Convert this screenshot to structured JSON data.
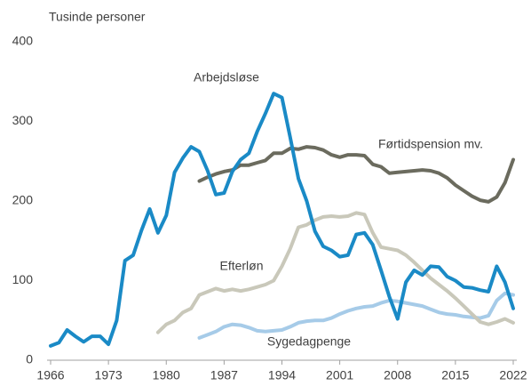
{
  "chart_data": {
    "type": "line",
    "y_axis_label": "Tusinde personer",
    "x": [
      1966,
      1967,
      1968,
      1969,
      1970,
      1971,
      1972,
      1973,
      1974,
      1975,
      1976,
      1977,
      1978,
      1979,
      1980,
      1981,
      1982,
      1983,
      1984,
      1985,
      1986,
      1987,
      1988,
      1989,
      1990,
      1991,
      1992,
      1993,
      1994,
      1995,
      1996,
      1997,
      1998,
      1999,
      2000,
      2001,
      2002,
      2003,
      2004,
      2005,
      2006,
      2007,
      2008,
      2009,
      2010,
      2011,
      2012,
      2013,
      2014,
      2015,
      2016,
      2017,
      2018,
      2019,
      2020,
      2021,
      2022
    ],
    "series": [
      {
        "name": "Arbejdsløse",
        "color": "#1a8ac6",
        "values": [
          18,
          22,
          38,
          30,
          23,
          30,
          30,
          20,
          50,
          125,
          132,
          163,
          190,
          160,
          182,
          236,
          254,
          268,
          262,
          238,
          208,
          210,
          237,
          252,
          260,
          287,
          310,
          335,
          330,
          280,
          228,
          200,
          162,
          143,
          138,
          130,
          132,
          158,
          160,
          145,
          113,
          80,
          52,
          98,
          113,
          107,
          118,
          117,
          105,
          100,
          92,
          91,
          88,
          86,
          118,
          98,
          65
        ]
      },
      {
        "name": "Førtidspension mv.",
        "color": "#6b6b5e",
        "values": [
          null,
          null,
          null,
          null,
          null,
          null,
          null,
          null,
          null,
          null,
          null,
          null,
          null,
          null,
          null,
          null,
          null,
          null,
          225,
          230,
          234,
          237,
          239,
          245,
          245,
          248,
          251,
          260,
          260,
          266,
          265,
          268,
          267,
          264,
          258,
          255,
          258,
          258,
          257,
          246,
          243,
          235,
          236,
          237,
          238,
          239,
          238,
          235,
          229,
          220,
          213,
          206,
          201,
          199,
          205,
          223,
          252
        ]
      },
      {
        "name": "Efterløn",
        "color": "#c9c8ba",
        "values": [
          null,
          null,
          null,
          null,
          null,
          null,
          null,
          null,
          null,
          null,
          null,
          null,
          null,
          35,
          45,
          50,
          60,
          65,
          82,
          86,
          90,
          87,
          89,
          87,
          89,
          92,
          95,
          100,
          118,
          140,
          167,
          170,
          176,
          180,
          181,
          180,
          181,
          185,
          183,
          160,
          142,
          140,
          138,
          132,
          123,
          113,
          103,
          95,
          87,
          78,
          68,
          58,
          48,
          45,
          48,
          52,
          47
        ]
      },
      {
        "name": "Sygedagpenge",
        "color": "#a6cbe8",
        "values": [
          null,
          null,
          null,
          null,
          null,
          null,
          null,
          null,
          null,
          null,
          null,
          null,
          null,
          null,
          null,
          null,
          null,
          null,
          28,
          32,
          36,
          42,
          45,
          44,
          41,
          37,
          36,
          37,
          38,
          42,
          47,
          49,
          50,
          50,
          53,
          58,
          62,
          65,
          67,
          68,
          72,
          75,
          74,
          72,
          70,
          68,
          64,
          60,
          58,
          57,
          55,
          54,
          53,
          56,
          75,
          84,
          82
        ]
      }
    ],
    "xlim": [
      1966,
      2022
    ],
    "xticks": [
      1966,
      1973,
      1980,
      1987,
      1994,
      2001,
      2008,
      2015,
      2022
    ],
    "ylim": [
      0,
      400
    ],
    "yticks": [
      0,
      100,
      200,
      300,
      400
    ],
    "legend": "inline",
    "grid": false
  }
}
